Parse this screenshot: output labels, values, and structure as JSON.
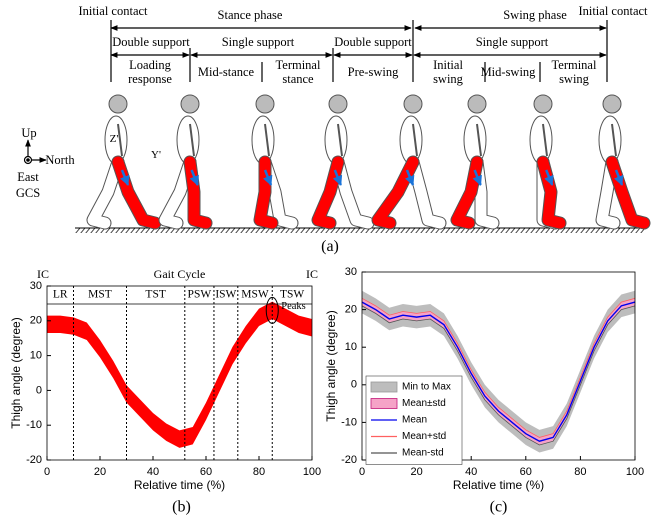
{
  "diagram": {
    "row1": [
      "Initial contact",
      "Stance phase",
      "Swing phase",
      "Initial contact"
    ],
    "row2": [
      "Double support",
      "Single support",
      "Double support",
      "Single support"
    ],
    "row3": [
      "Loading response",
      "Mid-stance",
      "Terminal stance",
      "Pre-swing",
      "Initial swing",
      "Mid-swing",
      "Terminal swing"
    ],
    "axes": {
      "up": "Up",
      "north": "North",
      "east": "East",
      "frame": "GCS",
      "y_axis": "Y'",
      "z_axis": "Z'"
    },
    "caption": "(a)"
  },
  "chart_data": [
    {
      "type": "band",
      "caption": "(b)",
      "xlabel": "Relative time (%)",
      "ylabel": "Thigh angle (degree)",
      "ic_left": "IC",
      "title": "Gait Cycle",
      "ic_right": "IC",
      "peaks_label": "Peaks",
      "phases": [
        "LR",
        "MST",
        "TST",
        "PSW",
        "ISW",
        "MSW",
        "TSW"
      ],
      "phase_boundaries": [
        10,
        30,
        52,
        63,
        72,
        85
      ],
      "xlim": [
        0,
        100
      ],
      "ylim": [
        -20,
        30
      ],
      "xticks": [
        0,
        20,
        40,
        60,
        80,
        100
      ],
      "yticks": [
        -20,
        -10,
        0,
        10,
        20,
        30
      ],
      "x": [
        0,
        5,
        10,
        15,
        20,
        25,
        30,
        35,
        40,
        45,
        50,
        55,
        60,
        65,
        70,
        75,
        80,
        85,
        90,
        95,
        100
      ],
      "series": [
        {
          "type": "area",
          "color": "#ff0000",
          "upper": [
            21.5,
            21.5,
            21,
            19.5,
            14.5,
            8.5,
            1.5,
            -2.5,
            -6.5,
            -9.5,
            -11.5,
            -10.5,
            -3.5,
            4.5,
            12.5,
            18.5,
            23.5,
            25.5,
            23.5,
            21.5,
            20.5
          ],
          "lower": [
            16.5,
            16.5,
            16,
            14.5,
            9.5,
            3.5,
            -3.5,
            -7.5,
            -11.5,
            -14.5,
            -16.5,
            -15.5,
            -8.5,
            -0.5,
            7.5,
            13.5,
            18.5,
            20.5,
            18.5,
            16.5,
            15.5
          ]
        }
      ]
    },
    {
      "type": "line",
      "caption": "(c)",
      "xlabel": "Relative time (%)",
      "ylabel": "Thigh angle (degree)",
      "legend": "center left",
      "xlim": [
        0,
        100
      ],
      "ylim": [
        -20,
        30
      ],
      "xticks": [
        0,
        20,
        40,
        60,
        80,
        100
      ],
      "yticks": [
        -20,
        -10,
        0,
        10,
        20,
        30
      ],
      "x": [
        0,
        5,
        10,
        15,
        20,
        25,
        30,
        35,
        40,
        45,
        50,
        55,
        60,
        65,
        70,
        75,
        80,
        85,
        90,
        95,
        100
      ],
      "series": [
        {
          "name": "Min to Max",
          "type": "area",
          "color": "#bdbdbd",
          "upper": [
            25,
            23,
            20.5,
            21.5,
            21,
            21.5,
            19,
            13,
            6,
            0,
            -4,
            -7,
            -10,
            -12,
            -11,
            -5,
            4,
            13,
            20,
            24,
            25
          ],
          "lower": [
            19,
            17,
            14.5,
            15.5,
            15,
            15.5,
            13,
            7,
            0,
            -6,
            -10,
            -13,
            -16,
            -18,
            -17,
            -11,
            -2,
            7,
            14,
            18,
            19
          ]
        },
        {
          "name": "Mean±std",
          "type": "area",
          "color": "#f5a3c7",
          "upper": [
            23,
            21,
            18.5,
            19.5,
            19,
            19.5,
            17,
            11,
            4,
            -2,
            -6,
            -9,
            -12,
            -14,
            -13,
            -7,
            2,
            11,
            18,
            22,
            23
          ],
          "lower": [
            21,
            19,
            16.5,
            17.5,
            17,
            17.5,
            15,
            9,
            2,
            -4,
            -8,
            -11,
            -14,
            -16,
            -15,
            -9,
            0,
            9,
            16,
            20,
            21
          ]
        },
        {
          "name": "Mean",
          "type": "line",
          "color": "#0000ee",
          "values": [
            22,
            20,
            17.5,
            18.5,
            18,
            18.5,
            16,
            10,
            3,
            -3,
            -7,
            -10,
            -13,
            -15,
            -14,
            -8,
            1,
            10,
            17,
            21,
            22
          ]
        },
        {
          "name": "Mean+std",
          "type": "line",
          "color": "#ff6060",
          "values": [
            23,
            21,
            18.5,
            19.5,
            19,
            19.5,
            17,
            11,
            4,
            -2,
            -6,
            -9,
            -12,
            -14,
            -13,
            -7,
            2,
            11,
            18,
            22,
            23
          ]
        },
        {
          "name": "Mean-std",
          "type": "line",
          "color": "#555555",
          "values": [
            21,
            19,
            16.5,
            17.5,
            17,
            17.5,
            15,
            9,
            2,
            -4,
            -8,
            -11,
            -14,
            -16,
            -15,
            -9,
            0,
            9,
            16,
            20,
            21
          ]
        }
      ]
    }
  ]
}
